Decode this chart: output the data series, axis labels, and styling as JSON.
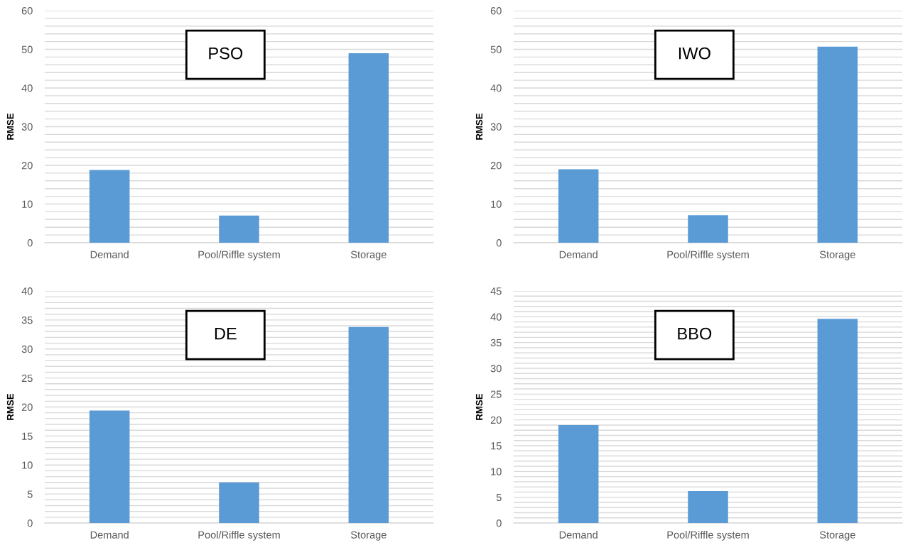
{
  "chart_data": [
    {
      "type": "bar",
      "title": "PSO",
      "ylabel": "RMSE",
      "categories": [
        "Demand",
        "Pool/Riffle system",
        "Storage"
      ],
      "values": [
        18.8,
        7.0,
        49.0
      ],
      "color": "#5b9bd5",
      "ylim": [
        0,
        60
      ],
      "yticks": [
        0,
        {
          "value": 2,
          "label": null
        },
        {
          "value": 4,
          "label": null
        },
        {
          "value": 6,
          "label": null
        },
        {
          "value": 8,
          "label": null
        },
        10,
        {
          "value": 12,
          "label": null
        },
        {
          "value": 14,
          "label": null
        },
        {
          "value": 16,
          "label": null
        },
        {
          "value": 18,
          "label": null
        },
        20,
        {
          "value": 22,
          "label": null
        },
        {
          "value": 24,
          "label": null
        },
        {
          "value": 26,
          "label": null
        },
        {
          "value": 28,
          "label": null
        },
        30,
        {
          "value": 32,
          "label": null
        },
        {
          "value": 34,
          "label": null
        },
        {
          "value": 36,
          "label": null
        },
        {
          "value": 38,
          "label": null
        },
        40,
        {
          "value": 42,
          "label": null
        },
        {
          "value": 44,
          "label": null
        },
        {
          "value": 46,
          "label": null
        },
        {
          "value": 48,
          "label": null
        },
        50,
        {
          "value": 52,
          "label": null
        },
        {
          "value": 54,
          "label": null
        },
        {
          "value": 56,
          "label": null
        },
        {
          "value": 58,
          "label": null
        },
        60
      ],
      "grid": "y"
    },
    {
      "type": "bar",
      "title": "IWO",
      "ylabel": "RMSE",
      "categories": [
        "Demand",
        "Pool/Riffle system",
        "Storage"
      ],
      "values": [
        19.0,
        7.1,
        50.7
      ],
      "color": "#5b9bd5",
      "ylim": [
        0,
        60
      ],
      "yticks": [
        0,
        {
          "value": 2,
          "label": null
        },
        {
          "value": 4,
          "label": null
        },
        {
          "value": 6,
          "label": null
        },
        {
          "value": 8,
          "label": null
        },
        10,
        {
          "value": 12,
          "label": null
        },
        {
          "value": 14,
          "label": null
        },
        {
          "value": 16,
          "label": null
        },
        {
          "value": 18,
          "label": null
        },
        20,
        {
          "value": 22,
          "label": null
        },
        {
          "value": 24,
          "label": null
        },
        {
          "value": 26,
          "label": null
        },
        {
          "value": 28,
          "label": null
        },
        30,
        {
          "value": 32,
          "label": null
        },
        {
          "value": 34,
          "label": null
        },
        {
          "value": 36,
          "label": null
        },
        {
          "value": 38,
          "label": null
        },
        40,
        {
          "value": 42,
          "label": null
        },
        {
          "value": 44,
          "label": null
        },
        {
          "value": 46,
          "label": null
        },
        {
          "value": 48,
          "label": null
        },
        50,
        {
          "value": 52,
          "label": null
        },
        {
          "value": 54,
          "label": null
        },
        {
          "value": 56,
          "label": null
        },
        {
          "value": 58,
          "label": null
        },
        60
      ],
      "grid": "y"
    },
    {
      "type": "bar",
      "title": "DE",
      "ylabel": "RMSE",
      "categories": [
        "Demand",
        "Pool/Riffle system",
        "Storage"
      ],
      "values": [
        19.4,
        7.0,
        33.8
      ],
      "color": "#5b9bd5",
      "ylim": [
        0,
        40
      ],
      "yticks": [
        0,
        {
          "value": 1,
          "label": null
        },
        {
          "value": 2,
          "label": null
        },
        {
          "value": 3,
          "label": null
        },
        {
          "value": 4,
          "label": null
        },
        5,
        {
          "value": 6,
          "label": null
        },
        {
          "value": 7,
          "label": null
        },
        {
          "value": 8,
          "label": null
        },
        {
          "value": 9,
          "label": null
        },
        10,
        {
          "value": 11,
          "label": null
        },
        {
          "value": 12,
          "label": null
        },
        {
          "value": 13,
          "label": null
        },
        {
          "value": 14,
          "label": null
        },
        15,
        {
          "value": 16,
          "label": null
        },
        {
          "value": 17,
          "label": null
        },
        {
          "value": 18,
          "label": null
        },
        {
          "value": 19,
          "label": null
        },
        20,
        {
          "value": 21,
          "label": null
        },
        {
          "value": 22,
          "label": null
        },
        {
          "value": 23,
          "label": null
        },
        {
          "value": 24,
          "label": null
        },
        25,
        {
          "value": 26,
          "label": null
        },
        {
          "value": 27,
          "label": null
        },
        {
          "value": 28,
          "label": null
        },
        {
          "value": 29,
          "label": null
        },
        30,
        {
          "value": 31,
          "label": null
        },
        {
          "value": 32,
          "label": null
        },
        {
          "value": 33,
          "label": null
        },
        {
          "value": 34,
          "label": null
        },
        35,
        {
          "value": 36,
          "label": null
        },
        {
          "value": 37,
          "label": null
        },
        {
          "value": 38,
          "label": null
        },
        {
          "value": 39,
          "label": null
        },
        40
      ],
      "grid": "y"
    },
    {
      "type": "bar",
      "title": "BBO",
      "ylabel": "RMSE",
      "categories": [
        "Demand",
        "Pool/Riffle system",
        "Storage"
      ],
      "values": [
        19.0,
        6.2,
        39.6
      ],
      "color": "#5b9bd5",
      "ylim": [
        0,
        45
      ],
      "yticks": [
        0,
        {
          "value": 1,
          "label": null
        },
        {
          "value": 2,
          "label": null
        },
        {
          "value": 3,
          "label": null
        },
        {
          "value": 4,
          "label": null
        },
        5,
        {
          "value": 6,
          "label": null
        },
        {
          "value": 7,
          "label": null
        },
        {
          "value": 8,
          "label": null
        },
        {
          "value": 9,
          "label": null
        },
        10,
        {
          "value": 11,
          "label": null
        },
        {
          "value": 12,
          "label": null
        },
        {
          "value": 13,
          "label": null
        },
        {
          "value": 14,
          "label": null
        },
        15,
        {
          "value": 16,
          "label": null
        },
        {
          "value": 17,
          "label": null
        },
        {
          "value": 18,
          "label": null
        },
        {
          "value": 19,
          "label": null
        },
        20,
        {
          "value": 21,
          "label": null
        },
        {
          "value": 22,
          "label": null
        },
        {
          "value": 23,
          "label": null
        },
        {
          "value": 24,
          "label": null
        },
        25,
        {
          "value": 26,
          "label": null
        },
        {
          "value": 27,
          "label": null
        },
        {
          "value": 28,
          "label": null
        },
        {
          "value": 29,
          "label": null
        },
        30,
        {
          "value": 31,
          "label": null
        },
        {
          "value": 32,
          "label": null
        },
        {
          "value": 33,
          "label": null
        },
        {
          "value": 34,
          "label": null
        },
        35,
        {
          "value": 36,
          "label": null
        },
        {
          "value": 37,
          "label": null
        },
        {
          "value": 38,
          "label": null
        },
        {
          "value": 39,
          "label": null
        },
        40,
        {
          "value": 41,
          "label": null
        },
        {
          "value": 42,
          "label": null
        },
        {
          "value": 43,
          "label": null
        },
        {
          "value": 44,
          "label": null
        },
        45
      ],
      "grid": "y"
    }
  ]
}
